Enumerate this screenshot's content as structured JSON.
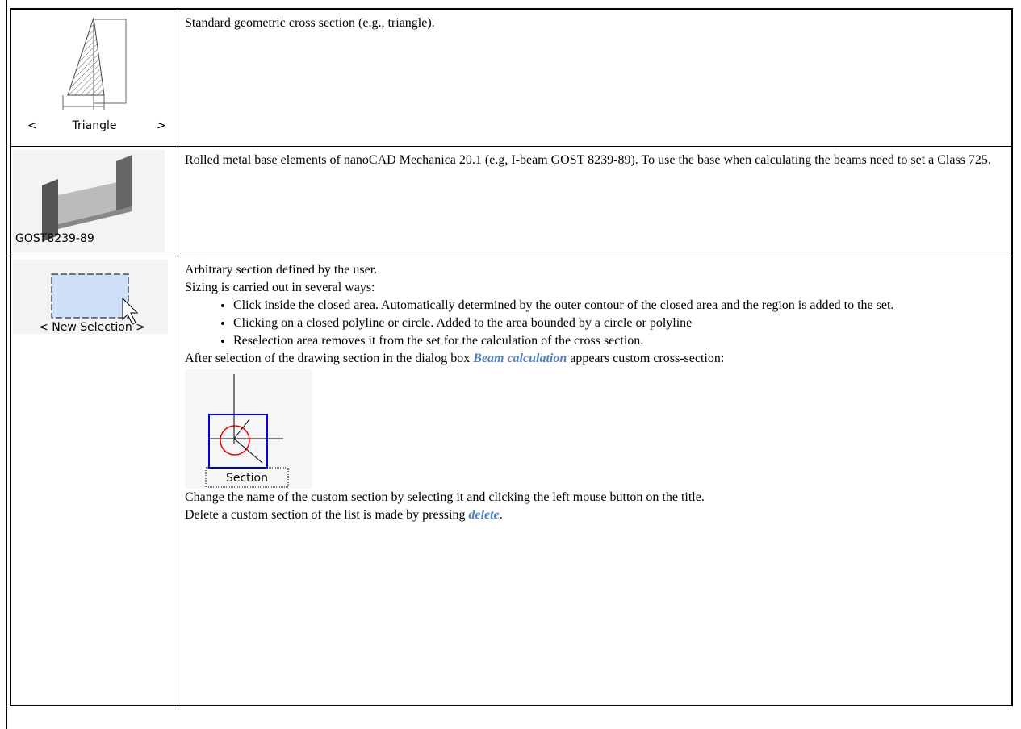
{
  "table": {
    "rows": [
      {
        "icon": {
          "prev": "<",
          "caption": "Triangle",
          "next": ">"
        },
        "text": "Standard geometric cross section (e.g., triangle)."
      },
      {
        "icon": {
          "caption": "GOST8239-89"
        },
        "text": "Rolled metal base elements of nanoCAD Mechanica 20.1 (e.g, I-beam GOST 8239-89). To use the base when calculating the beams need to set a Class 725."
      },
      {
        "icon": {
          "caption": "< New Selection >"
        },
        "lines": [
          "Arbitrary section defined by the user.",
          "Sizing is carried out in several ways:"
        ],
        "bullets": [
          "Click inside the closed area. Automatically determined by the outer contour of the closed area and the region is added to the set.",
          "Clicking on a closed polyline or circle. Added to the area bounded by a circle or polyline",
          "Reselection area removes it from the set for the calculation of the cross section."
        ],
        "note": {
          "before": "After selection of the drawing section in the dialog box ",
          "link": "Beam calculation",
          "after": " appears custom cross-section:"
        },
        "figure_caption": "Section",
        "rename": "Change the name of the custom section by selecting it and clicking the left mouse button on the title.",
        "delete": {
          "before": "Delete a custom section of the list is made by pressing ",
          "link": "delete",
          "after": "."
        }
      }
    ]
  }
}
